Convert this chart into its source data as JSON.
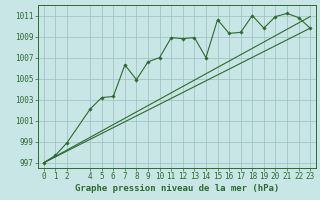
{
  "background_color": "#c8e6e6",
  "grid_color": "#9bbfbf",
  "line_color": "#2d6b2d",
  "title": "Graphe pression niveau de la mer (hPa)",
  "xlim": [
    -0.5,
    23.5
  ],
  "ylim": [
    996.5,
    1012.0
  ],
  "yticks": [
    997,
    999,
    1001,
    1003,
    1005,
    1007,
    1009,
    1011
  ],
  "xticks": [
    0,
    1,
    2,
    4,
    5,
    6,
    7,
    8,
    9,
    10,
    11,
    12,
    13,
    14,
    15,
    16,
    17,
    18,
    19,
    20,
    21,
    22,
    23
  ],
  "series1_x": [
    0,
    1,
    2,
    4,
    5,
    6,
    7,
    8,
    9,
    10,
    11,
    12,
    13,
    14,
    15,
    16,
    17,
    18,
    19,
    20,
    21,
    22,
    23
  ],
  "series1_y": [
    997.0,
    997.7,
    998.9,
    1002.1,
    1003.2,
    1003.3,
    1006.3,
    1004.9,
    1006.6,
    1007.0,
    1008.9,
    1008.8,
    1008.9,
    1007.0,
    1010.6,
    1009.3,
    1009.4,
    1011.0,
    1009.8,
    1010.9,
    1011.2,
    1010.8,
    1009.8
  ],
  "series2_x": [
    0,
    23
  ],
  "series2_y": [
    997.0,
    1010.9
  ],
  "series3_x": [
    0,
    23
  ],
  "series3_y": [
    997.0,
    1009.8
  ],
  "tick_fontsize": 5.5,
  "title_fontsize": 6.5
}
